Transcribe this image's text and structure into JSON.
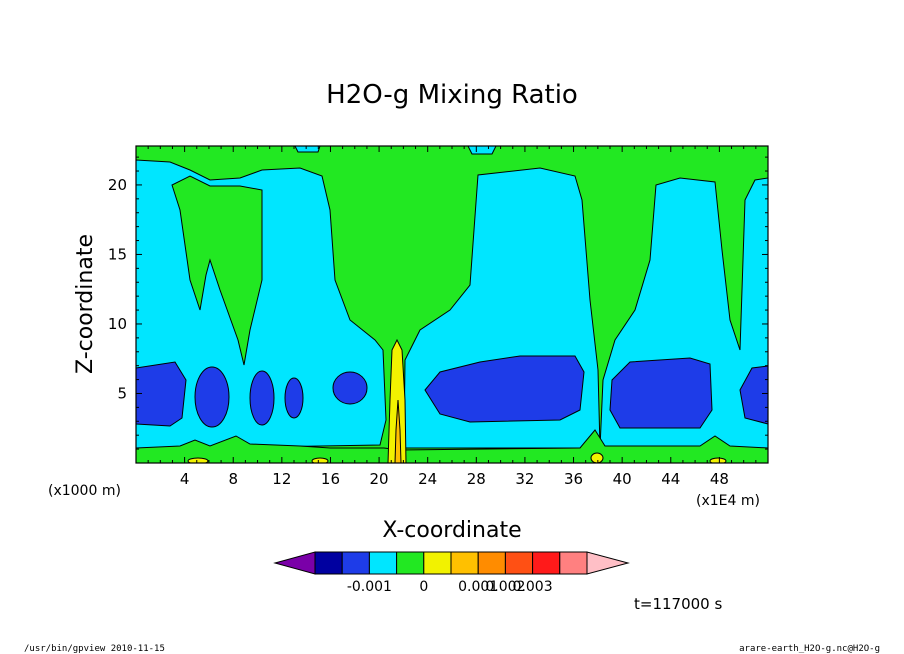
{
  "chart_data": {
    "type": "heatmap",
    "subtype": "filled-contour",
    "title": "H2O-g Mixing Ratio",
    "xlabel": "X-coordinate",
    "ylabel": "Z-coordinate",
    "x_unit_label": "(x1E4 m)",
    "y_unit_label": "(x1000 m)",
    "xlim": [
      0,
      52
    ],
    "ylim": [
      0,
      22.8
    ],
    "x_ticks": [
      4,
      8,
      12,
      16,
      20,
      24,
      28,
      32,
      36,
      40,
      44,
      48
    ],
    "y_ticks": [
      5,
      10,
      15,
      20
    ],
    "x_tick_labels": [
      "4",
      "8",
      "12",
      "16",
      "20",
      "24",
      "28",
      "32",
      "36",
      "40",
      "44",
      "48"
    ],
    "y_tick_labels": [
      "5",
      "10",
      "15",
      "20"
    ],
    "colorbar": {
      "colors": [
        "#7a00a8",
        "#0000a0",
        "#1e3ce8",
        "#00e6ff",
        "#22e822",
        "#f2f200",
        "#ffc000",
        "#ff8c00",
        "#ff5014",
        "#ff1a1a",
        "#ff8080",
        "#ffbfc6"
      ],
      "labels": [
        "-0.001",
        "0",
        "0.001",
        "0.002",
        "0.003"
      ]
    },
    "regions": [
      {
        "level": "0 to 0.001 (green)",
        "description": "background upper and middle layer"
      },
      {
        "level": "-0.0005 to 0 (cyan)",
        "description": "wide columns around x=4-14, 24-36, 40-50"
      },
      {
        "level": "-0.001 to -0.0005 (blue)",
        "description": "low cells near z=5 at x~2, 6, 10, 13, 17, 24-36, 40-46, 50"
      },
      {
        "level": "0.001+ (yellow)",
        "description": "narrow plume at x~21 from z=0 to z~9"
      }
    ],
    "annotations": [
      "t=117000 s"
    ]
  },
  "footer": {
    "left": "/usr/bin/gpview   2010-11-15",
    "right": "arare-earth_H2O-g.nc@H2O-g"
  }
}
